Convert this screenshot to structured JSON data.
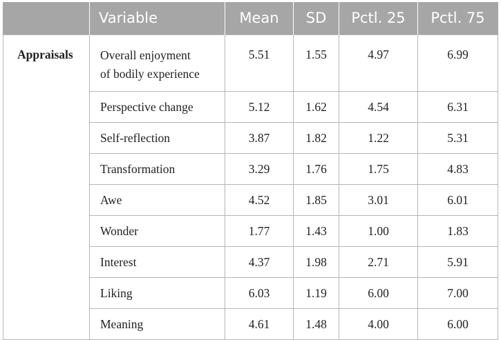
{
  "table": {
    "headers": [
      "",
      "Variable",
      "Mean",
      "SD",
      "Pctl. 25",
      "Pctl. 75"
    ],
    "group_label": "Appraisals",
    "rows": [
      {
        "variable_line1": "Overall enjoyment",
        "variable_line2": "of bodily experience",
        "mean": "5.51",
        "sd": "1.55",
        "p25": "4.97",
        "p75": "6.99"
      },
      {
        "variable": "Perspective change",
        "mean": "5.12",
        "sd": "1.62",
        "p25": "4.54",
        "p75": "6.31"
      },
      {
        "variable": "Self-reflection",
        "mean": "3.87",
        "sd": "1.82",
        "p25": "1.22",
        "p75": "5.31"
      },
      {
        "variable": "Transformation",
        "mean": "3.29",
        "sd": "1.76",
        "p25": "1.75",
        "p75": "4.83"
      },
      {
        "variable": "Awe",
        "mean": "4.52",
        "sd": "1.85",
        "p25": "3.01",
        "p75": "6.01"
      },
      {
        "variable": "Wonder",
        "mean": "1.77",
        "sd": "1.43",
        "p25": "1.00",
        "p75": "1.83"
      },
      {
        "variable": "Interest",
        "mean": "4.37",
        "sd": "1.98",
        "p25": "2.71",
        "p75": "5.91"
      },
      {
        "variable": "Liking",
        "mean": "6.03",
        "sd": "1.19",
        "p25": "6.00",
        "p75": "7.00"
      },
      {
        "variable": "Meaning",
        "mean": "4.61",
        "sd": "1.48",
        "p25": "4.00",
        "p75": "6.00"
      }
    ]
  }
}
